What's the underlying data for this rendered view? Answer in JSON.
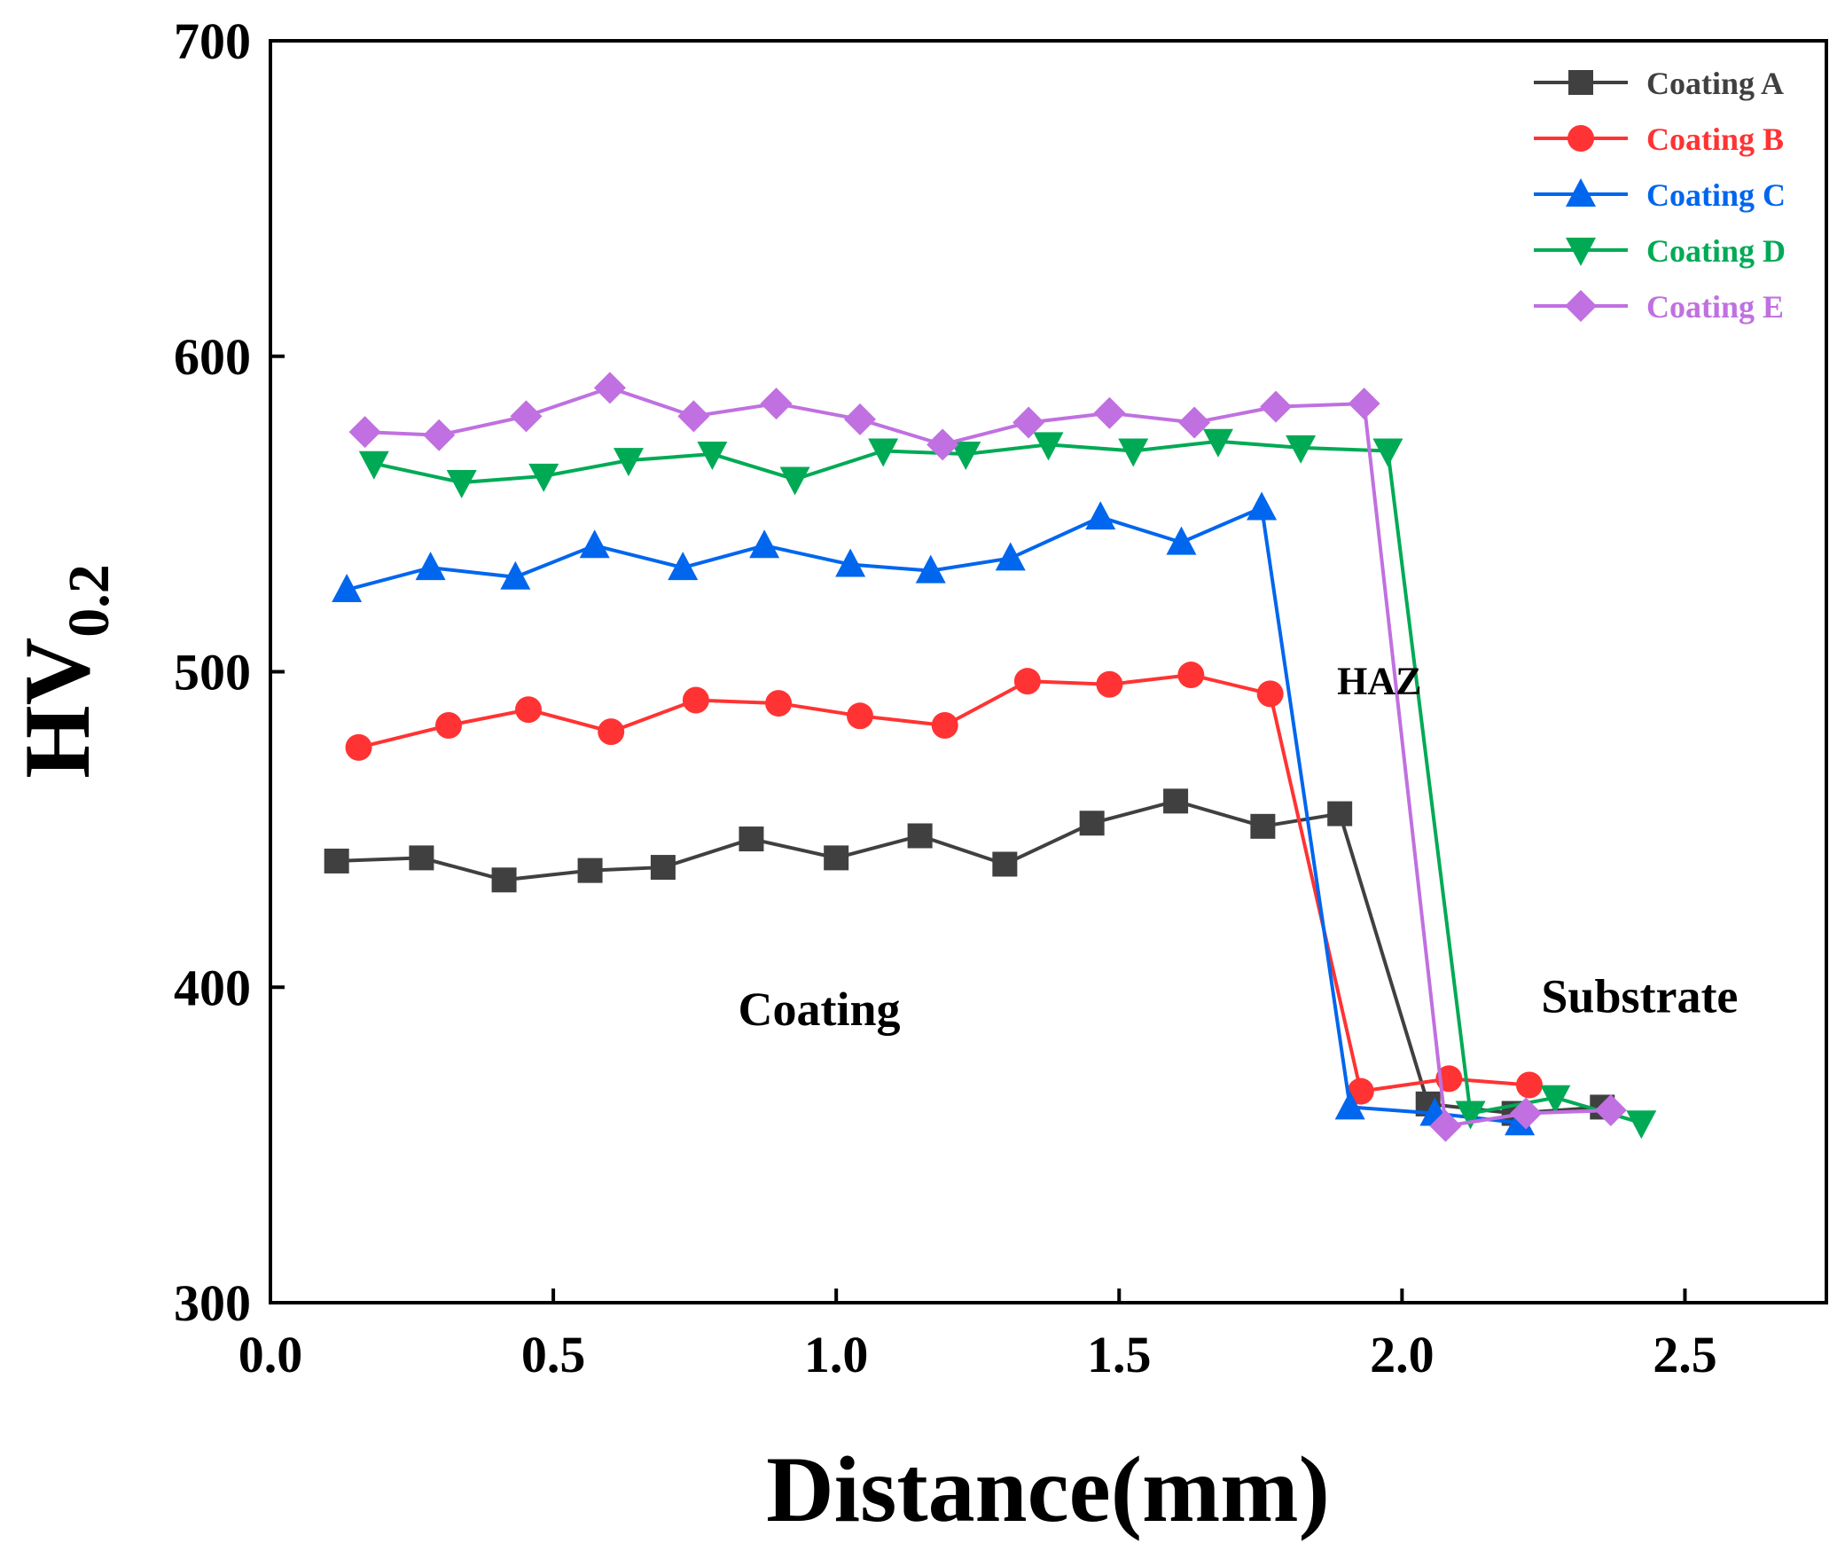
{
  "chart_data": {
    "type": "line",
    "title": "",
    "xlabel": "Distance(mm)",
    "ylabel_main": "HV",
    "ylabel_sub": "0.2",
    "xlim": [
      0,
      2.75
    ],
    "ylim": [
      300,
      700
    ],
    "xticks": [
      0.0,
      0.5,
      1.0,
      1.5,
      2.0,
      2.5
    ],
    "xtick_labels": [
      "0.0",
      "0.5",
      "1.0",
      "1.5",
      "2.0",
      "2.5"
    ],
    "yticks": [
      300,
      400,
      500,
      600,
      700
    ],
    "ytick_labels": [
      "300",
      "400",
      "500",
      "600",
      "700"
    ],
    "grid": false,
    "legend_position": "top-right",
    "annotations": [
      {
        "text": "HAZ",
        "x": 1.96,
        "y": 493
      },
      {
        "text": "Coating",
        "x": 0.97,
        "y": 388
      },
      {
        "text": "Substrate",
        "x": 2.42,
        "y": 392
      }
    ],
    "series": [
      {
        "name": "Coating A",
        "color": "#404040",
        "marker": "square",
        "x": [
          0.117,
          0.267,
          0.413,
          0.565,
          0.694,
          0.85,
          1.0,
          1.148,
          1.298,
          1.452,
          1.6,
          1.754,
          1.89,
          2.046,
          2.198,
          2.354
        ],
        "y": [
          440,
          441,
          434,
          437,
          438,
          447,
          441,
          448,
          439,
          452,
          459,
          451,
          455,
          363,
          360,
          362
        ]
      },
      {
        "name": "Coating B",
        "color": "#ff3333",
        "marker": "circle",
        "x": [
          0.156,
          0.315,
          0.456,
          0.602,
          0.752,
          0.898,
          1.042,
          1.192,
          1.338,
          1.483,
          1.627,
          1.767,
          1.927,
          2.083,
          2.225
        ],
        "y": [
          476,
          483,
          488,
          481,
          491,
          490,
          486,
          483,
          497,
          496,
          499,
          493,
          367,
          371,
          369
        ]
      },
      {
        "name": "Coating C",
        "color": "#0066ee",
        "marker": "triangle-up",
        "x": [
          0.135,
          0.283,
          0.433,
          0.573,
          0.729,
          0.873,
          1.025,
          1.167,
          1.308,
          1.467,
          1.61,
          1.752,
          1.908,
          2.058,
          2.208
        ],
        "y": [
          526,
          533,
          530,
          540,
          533,
          540,
          534,
          532,
          536,
          549,
          541,
          552,
          362,
          360,
          357
        ]
      },
      {
        "name": "Coating D",
        "color": "#00aa55",
        "marker": "triangle-down",
        "x": [
          0.183,
          0.338,
          0.483,
          0.633,
          0.781,
          0.927,
          1.083,
          1.229,
          1.375,
          1.525,
          1.675,
          1.821,
          1.975,
          2.121,
          2.271,
          2.423
        ],
        "y": [
          566,
          560,
          562,
          567,
          569,
          561,
          570,
          569,
          572,
          570,
          573,
          571,
          570,
          360,
          365,
          357
        ]
      },
      {
        "name": "Coating E",
        "color": "#c070e0",
        "marker": "diamond",
        "x": [
          0.167,
          0.298,
          0.452,
          0.6,
          0.748,
          0.894,
          1.042,
          1.188,
          1.34,
          1.483,
          1.633,
          1.777,
          1.933,
          2.077,
          2.219,
          2.369
        ],
        "y": [
          576,
          575,
          581,
          590,
          581,
          585,
          580,
          572,
          579,
          582,
          579,
          584,
          585,
          356,
          360,
          361
        ]
      }
    ]
  }
}
